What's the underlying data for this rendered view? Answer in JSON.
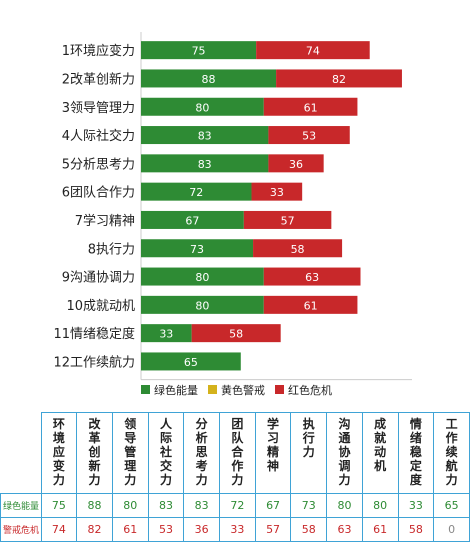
{
  "chart_data": {
    "type": "bar",
    "orientation": "horizontal",
    "stacked": true,
    "categories": [
      "1环境应变力",
      "2改革创新力",
      "3领导管理力",
      "4人际社交力",
      "5分析思考力",
      "6团队合作力",
      "7学习精神",
      "8执行力",
      "9沟通协调力",
      "10成就动机",
      "11情绪稳定度",
      "12工作续航力"
    ],
    "series": [
      {
        "name": "绿色能量",
        "color": "#2e8b34",
        "values": [
          75,
          88,
          80,
          83,
          83,
          72,
          67,
          73,
          80,
          80,
          33,
          65
        ]
      },
      {
        "name": "黄色警戒",
        "color": "#d4b21c",
        "values": [
          0,
          0,
          0,
          0,
          0,
          0,
          0,
          0,
          0,
          0,
          0,
          0
        ]
      },
      {
        "name": "红色危机",
        "color": "#c8282a",
        "values": [
          74,
          82,
          61,
          53,
          36,
          33,
          57,
          58,
          63,
          61,
          58,
          0
        ]
      }
    ],
    "legend_position": "bottom",
    "grid": false
  },
  "table": {
    "columns": [
      "环境应变力",
      "改革创新力",
      "领导管理力",
      "人际社交力",
      "分析思考力",
      "团队合作力",
      "学习精神",
      "执行力",
      "沟通协调力",
      "成就动机",
      "情绪稳定度",
      "工作续航力"
    ],
    "rows": [
      {
        "label": "绿色能量",
        "color": "#2e8b34",
        "values": [
          "75",
          "88",
          "80",
          "83",
          "83",
          "72",
          "67",
          "73",
          "80",
          "80",
          "33",
          "65"
        ]
      },
      {
        "label": "警戒危机",
        "color": "#c8282a",
        "values": [
          "74",
          "82",
          "61",
          "53",
          "36",
          "33",
          "57",
          "58",
          "63",
          "61",
          "58",
          "0"
        ]
      }
    ],
    "zero_color": "#888888"
  }
}
